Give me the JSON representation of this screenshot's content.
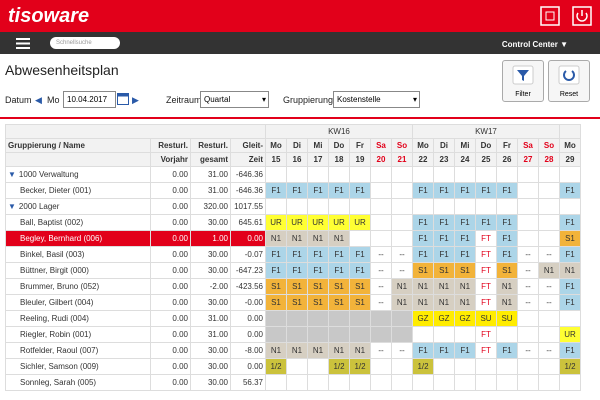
{
  "header": {
    "logo": "tisoware",
    "search_placeholder": "Schnellsuche",
    "control_center": "Control Center"
  },
  "page": {
    "title": "Abwesenheitsplan",
    "date_label": "Datum",
    "weekday": "Mo",
    "date": "10.04.2017",
    "period_label": "Zeitraum",
    "period": "Quartal",
    "grouping_label": "Gruppierung",
    "grouping": "Kostenstelle",
    "buttons": [
      "Filter",
      "Reset"
    ]
  },
  "table": {
    "columns": {
      "name": "Gruppierung / Name",
      "vorjahr": [
        "Resturl.",
        "Vorjahr"
      ],
      "gesamt": [
        "Resturl.",
        "gesamt"
      ],
      "gleit": [
        "Gleit-",
        "Zeit"
      ]
    },
    "weeks": [
      "KW16",
      "KW17"
    ],
    "weekdays": [
      "Mo",
      "Di",
      "Mi",
      "Do",
      "Fr",
      "Sa",
      "So",
      "Mo",
      "Di",
      "Mi",
      "Do",
      "Fr",
      "Sa",
      "So",
      "Mo"
    ],
    "daynums": [
      "15",
      "16",
      "17",
      "18",
      "19",
      "20",
      "21",
      "22",
      "23",
      "24",
      "25",
      "26",
      "27",
      "28",
      "29"
    ],
    "code_colors": {
      "F1": "#acd5e8",
      "UR": "#ffff33",
      "N1": "#d6cfc2",
      "S1": "#f2b33a",
      "FT": "#ffffff",
      "GZ": "#ffec00",
      "SU": "#ffec00",
      "1/2": "#cbc23c"
    },
    "rows": [
      {
        "name": "1000 Verwaltung",
        "group": true,
        "vorjahr": "0.00",
        "gesamt": "31.00",
        "gleit": "-646.36"
      },
      {
        "name": "Becker, Dieter (001)",
        "vorjahr": "0.00",
        "gesamt": "31.00",
        "gleit": "-646.36",
        "days": [
          "F1",
          "F1",
          "F1",
          "F1",
          "F1",
          null,
          null,
          "F1",
          "F1",
          "F1",
          "F1",
          "F1",
          null,
          null,
          "F1"
        ]
      },
      {
        "name": "2000 Lager",
        "group": true,
        "vorjahr": "0.00",
        "gesamt": "320.00",
        "gleit": "1017.55"
      },
      {
        "name": "Ball, Baptist (002)",
        "vorjahr": "0.00",
        "gesamt": "30.00",
        "gleit": "645.61",
        "days": [
          "UR",
          "UR",
          "UR",
          "UR",
          "UR",
          null,
          null,
          "F1",
          "F1",
          "F1",
          "F1",
          "F1",
          null,
          null,
          "F1"
        ]
      },
      {
        "name": "Begley, Bernhard (006)",
        "selected": true,
        "vorjahr": "0.00",
        "gesamt": "1.00",
        "gleit": "0.00",
        "days": [
          "N1",
          "N1",
          "N1",
          "N1",
          null,
          null,
          null,
          "F1",
          "F1",
          "F1",
          "FT",
          "F1",
          null,
          null,
          "S1"
        ]
      },
      {
        "name": "Binkel, Basil (003)",
        "vorjahr": "0.00",
        "gesamt": "30.00",
        "gleit": "-0.07",
        "days": [
          "F1",
          "F1",
          "F1",
          "F1",
          "F1",
          "--",
          "--",
          "F1",
          "F1",
          "F1",
          "FT",
          "F1",
          "--",
          "--",
          "F1"
        ]
      },
      {
        "name": "Büttner, Birgit (000)",
        "vorjahr": "0.00",
        "gesamt": "30.00",
        "gleit": "-647.23",
        "days": [
          "F1",
          "F1",
          "F1",
          "F1",
          "F1",
          "--",
          "--",
          "S1",
          "S1",
          "S1",
          "FT",
          "S1",
          "--",
          "N1",
          "N1"
        ]
      },
      {
        "name": "Brummer, Bruno (052)",
        "vorjahr": "0.00",
        "gesamt": "-2.00",
        "gleit": "-423.56",
        "days": [
          "S1",
          "S1",
          "S1",
          "S1",
          "S1",
          "--",
          "N1",
          "N1",
          "N1",
          "N1",
          "FT",
          "N1",
          "--",
          "--",
          "F1"
        ]
      },
      {
        "name": "Bleuler, Gilbert (004)",
        "vorjahr": "0.00",
        "gesamt": "30.00",
        "gleit": "-0.00",
        "days": [
          "S1",
          "S1",
          "S1",
          "S1",
          "S1",
          "--",
          "N1",
          "N1",
          "N1",
          "N1",
          "FT",
          "N1",
          "--",
          "--",
          "F1"
        ]
      },
      {
        "name": "Reeling, Rudi (004)",
        "vorjahr": "0.00",
        "gesamt": "31.00",
        "gleit": "0.00",
        "shaded": [
          0,
          1,
          2,
          3,
          4
        ],
        "days": [
          null,
          null,
          null,
          null,
          null,
          null,
          null,
          "GZ",
          "GZ",
          "GZ",
          "SU",
          "SU",
          null,
          null,
          null
        ]
      },
      {
        "name": "Riegler, Robin (001)",
        "vorjahr": "0.00",
        "gesamt": "31.00",
        "gleit": "0.00",
        "shaded": [
          0,
          1,
          2,
          3,
          4
        ],
        "days": [
          null,
          null,
          null,
          null,
          null,
          null,
          null,
          null,
          null,
          null,
          "FT",
          null,
          null,
          null,
          "UR"
        ]
      },
      {
        "name": "Rotfelder, Raoul (007)",
        "vorjahr": "0.00",
        "gesamt": "30.00",
        "gleit": "-8.00",
        "days": [
          "N1",
          "N1",
          "N1",
          "N1",
          "N1",
          "--",
          "--",
          "F1",
          "F1",
          "F1",
          "FT",
          "F1",
          "--",
          "--",
          "F1"
        ]
      },
      {
        "name": "Sichler, Samson (009)",
        "vorjahr": "0.00",
        "gesamt": "30.00",
        "gleit": "0.00",
        "days": [
          "1/2",
          null,
          null,
          "1/2",
          "1/2",
          null,
          null,
          "1/2",
          null,
          null,
          null,
          null,
          null,
          null,
          "1/2"
        ]
      },
      {
        "name": "Sonnleg, Sarah (005)",
        "vorjahr": "0.00",
        "gesamt": "30.00",
        "gleit": "56.37",
        "days": [
          null,
          null,
          null,
          null,
          null,
          null,
          null,
          null,
          null,
          null,
          null,
          null,
          null,
          null,
          null
        ]
      }
    ]
  }
}
